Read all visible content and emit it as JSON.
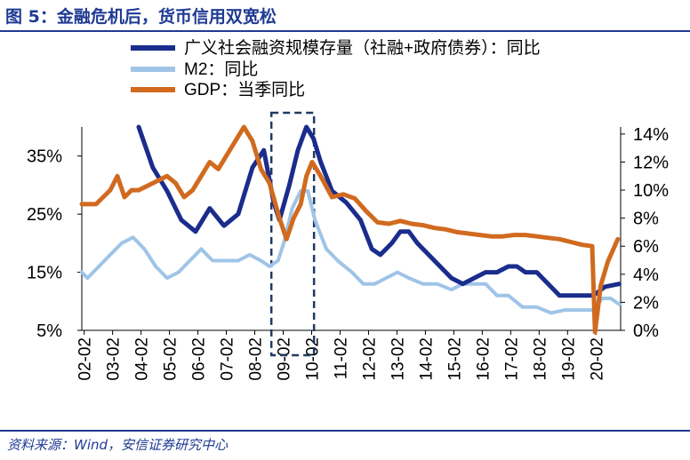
{
  "figure": {
    "title": "图 5：金融危机后，货币信用双宽松",
    "source": "资料来源：Wind，安信证券研究中心"
  },
  "chart_data": {
    "type": "line",
    "x_ticks": [
      "02-02",
      "03-02",
      "04-02",
      "05-02",
      "06-02",
      "07-02",
      "08-02",
      "09-02",
      "10-02",
      "11-02",
      "12-02",
      "13-02",
      "14-02",
      "15-02",
      "16-02",
      "17-02",
      "18-02",
      "19-02",
      "20-02"
    ],
    "left_axis": {
      "ticks": [
        "5%",
        "15%",
        "25%",
        "35%"
      ],
      "ylim": [
        5,
        40
      ]
    },
    "right_axis": {
      "ticks": [
        "0%",
        "2%",
        "4%",
        "6%",
        "8%",
        "10%",
        "12%",
        "14%"
      ],
      "ylim": [
        0,
        14.5
      ]
    },
    "highlight_range": [
      "2008-09",
      "2010-03"
    ],
    "series": [
      {
        "name": "广义社会融资规模存量（社融+政府债券）：同比",
        "axis": "left",
        "color": "#1a2c8c",
        "points": [
          [
            2004.0,
            40
          ],
          [
            2004.5,
            33
          ],
          [
            2005.0,
            29
          ],
          [
            2005.5,
            24
          ],
          [
            2006.0,
            22
          ],
          [
            2006.5,
            26
          ],
          [
            2007.0,
            23
          ],
          [
            2007.5,
            25
          ],
          [
            2008.0,
            33
          ],
          [
            2008.4,
            36
          ],
          [
            2008.75,
            27
          ],
          [
            2008.95,
            24
          ],
          [
            2009.3,
            30
          ],
          [
            2009.6,
            36
          ],
          [
            2009.9,
            40
          ],
          [
            2010.15,
            38
          ],
          [
            2010.4,
            34
          ],
          [
            2010.8,
            29
          ],
          [
            2011.3,
            27
          ],
          [
            2011.8,
            24
          ],
          [
            2012.2,
            19
          ],
          [
            2012.5,
            18
          ],
          [
            2012.9,
            20
          ],
          [
            2013.2,
            22
          ],
          [
            2013.5,
            22
          ],
          [
            2013.8,
            20
          ],
          [
            2014.2,
            18
          ],
          [
            2014.6,
            16
          ],
          [
            2015.0,
            14
          ],
          [
            2015.4,
            13
          ],
          [
            2015.8,
            14
          ],
          [
            2016.2,
            15
          ],
          [
            2016.6,
            15
          ],
          [
            2017.0,
            16
          ],
          [
            2017.3,
            16
          ],
          [
            2017.6,
            15
          ],
          [
            2018.0,
            15
          ],
          [
            2018.4,
            13
          ],
          [
            2018.8,
            11
          ],
          [
            2019.2,
            11
          ],
          [
            2019.6,
            11
          ],
          [
            2020.0,
            11
          ],
          [
            2020.4,
            12.5
          ],
          [
            2020.9,
            13
          ]
        ]
      },
      {
        "name": "M2：同比",
        "axis": "left",
        "color": "#9fc4e7",
        "points": [
          [
            2002.0,
            15
          ],
          [
            2002.2,
            14
          ],
          [
            2002.6,
            16
          ],
          [
            2003.0,
            18
          ],
          [
            2003.4,
            20
          ],
          [
            2003.8,
            21
          ],
          [
            2004.2,
            19
          ],
          [
            2004.6,
            16
          ],
          [
            2005.0,
            14
          ],
          [
            2005.4,
            15
          ],
          [
            2005.8,
            17
          ],
          [
            2006.2,
            19
          ],
          [
            2006.6,
            17
          ],
          [
            2007.0,
            17
          ],
          [
            2007.5,
            17
          ],
          [
            2007.9,
            18
          ],
          [
            2008.3,
            17
          ],
          [
            2008.6,
            16
          ],
          [
            2008.9,
            17
          ],
          [
            2009.1,
            20
          ],
          [
            2009.4,
            26
          ],
          [
            2009.7,
            29
          ],
          [
            2009.95,
            29
          ],
          [
            2010.2,
            24
          ],
          [
            2010.6,
            19
          ],
          [
            2011.0,
            17
          ],
          [
            2011.5,
            15
          ],
          [
            2011.9,
            13
          ],
          [
            2012.3,
            13
          ],
          [
            2012.7,
            14
          ],
          [
            2013.1,
            15
          ],
          [
            2013.5,
            14
          ],
          [
            2014.0,
            13
          ],
          [
            2014.5,
            13
          ],
          [
            2015.0,
            12
          ],
          [
            2015.4,
            13
          ],
          [
            2015.8,
            13
          ],
          [
            2016.2,
            13
          ],
          [
            2016.6,
            11
          ],
          [
            2017.0,
            11
          ],
          [
            2017.5,
            9
          ],
          [
            2018.0,
            9
          ],
          [
            2018.5,
            8
          ],
          [
            2019.0,
            8.5
          ],
          [
            2019.5,
            8.5
          ],
          [
            2020.0,
            8.5
          ],
          [
            2020.3,
            10.5
          ],
          [
            2020.6,
            10.5
          ],
          [
            2020.9,
            9.5
          ]
        ]
      },
      {
        "name": "GDP：当季同比",
        "axis": "right",
        "color": "#d16a1f",
        "points": [
          [
            2002.0,
            9
          ],
          [
            2002.5,
            9
          ],
          [
            2003.0,
            10
          ],
          [
            2003.25,
            11
          ],
          [
            2003.5,
            9.5
          ],
          [
            2003.75,
            10
          ],
          [
            2004.0,
            10
          ],
          [
            2004.5,
            10.5
          ],
          [
            2005.0,
            11
          ],
          [
            2005.3,
            10.5
          ],
          [
            2005.6,
            9.5
          ],
          [
            2005.9,
            10
          ],
          [
            2006.2,
            11
          ],
          [
            2006.5,
            12
          ],
          [
            2006.8,
            11.5
          ],
          [
            2007.1,
            12.5
          ],
          [
            2007.4,
            13.5
          ],
          [
            2007.7,
            14.5
          ],
          [
            2008.0,
            13.5
          ],
          [
            2008.3,
            11.5
          ],
          [
            2008.6,
            10.5
          ],
          [
            2008.95,
            8
          ],
          [
            2009.2,
            6.5
          ],
          [
            2009.45,
            8
          ],
          [
            2009.7,
            9
          ],
          [
            2009.9,
            11
          ],
          [
            2010.1,
            12
          ],
          [
            2010.4,
            11
          ],
          [
            2010.8,
            9.5
          ],
          [
            2011.2,
            9.7
          ],
          [
            2011.6,
            9.4
          ],
          [
            2012.0,
            8.5
          ],
          [
            2012.4,
            7.7
          ],
          [
            2012.8,
            7.6
          ],
          [
            2013.2,
            7.8
          ],
          [
            2013.6,
            7.6
          ],
          [
            2014.0,
            7.5
          ],
          [
            2014.4,
            7.3
          ],
          [
            2014.8,
            7.2
          ],
          [
            2015.2,
            7.0
          ],
          [
            2015.6,
            6.9
          ],
          [
            2016.0,
            6.8
          ],
          [
            2016.4,
            6.7
          ],
          [
            2016.8,
            6.7
          ],
          [
            2017.2,
            6.8
          ],
          [
            2017.6,
            6.8
          ],
          [
            2018.0,
            6.7
          ],
          [
            2018.4,
            6.6
          ],
          [
            2018.8,
            6.5
          ],
          [
            2019.2,
            6.3
          ],
          [
            2019.6,
            6.1
          ],
          [
            2019.95,
            6.0
          ],
          [
            2020.05,
            -0.5
          ],
          [
            2020.25,
            3.2
          ],
          [
            2020.5,
            4.9
          ],
          [
            2020.85,
            6.5
          ]
        ]
      }
    ]
  }
}
